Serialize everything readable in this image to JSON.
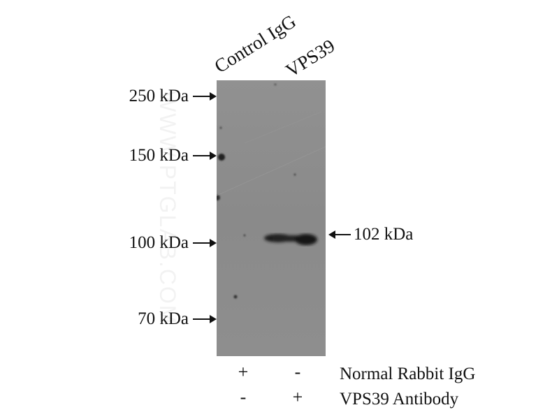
{
  "lanes": [
    "Control IgG",
    "VPS39"
  ],
  "markers": [
    "250 kDa",
    "150 kDa",
    "100 kDa",
    "70 kDa"
  ],
  "target_band": "102 kDa",
  "watermark": "WWW.PTGLAB.COM",
  "conditions": [
    {
      "label": "Normal Rabbit IgG",
      "signs": [
        "+",
        "-"
      ]
    },
    {
      "label": "VPS39 Antibody",
      "signs": [
        "-",
        "+"
      ]
    }
  ],
  "colors": {
    "membrane": "#8d8d8d",
    "band": "#1a1a1a"
  }
}
